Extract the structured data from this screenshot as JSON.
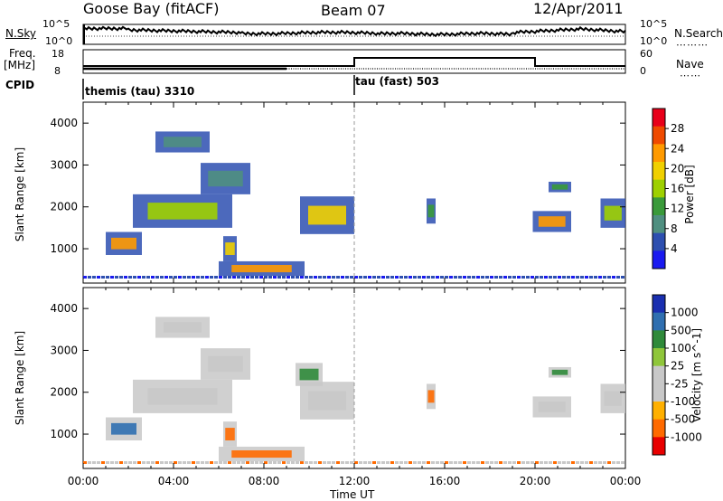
{
  "header": {
    "station": "Goose Bay (fitACF)",
    "beam": "Beam 07",
    "date": "12/Apr/2011"
  },
  "noise_panel": {
    "left_label": "N.Sky",
    "right_label": "N.Search",
    "left_ticks": [
      "10^5",
      "10^0"
    ],
    "right_ticks": [
      "10^5",
      "10^0"
    ]
  },
  "freq_panel": {
    "left_label": "Freq.",
    "left_unit": "[MHz]",
    "right_label": "Nave",
    "left_ticks": [
      "18",
      "8"
    ],
    "right_ticks": [
      "60",
      "0"
    ]
  },
  "cpid_panel": {
    "label": "CPID",
    "programs": [
      {
        "name": "themis (tau) 3310",
        "start_hour": 0
      },
      {
        "name": "tau (fast) 503",
        "start_hour": 12
      }
    ]
  },
  "time_axis": {
    "label": "Time UT",
    "ticks": [
      "00:00",
      "04:00",
      "08:00",
      "12:00",
      "16:00",
      "20:00",
      "00:00"
    ]
  },
  "chart_data": [
    {
      "type": "heatmap",
      "title": "Power",
      "ylabel": "Slant Range [km]",
      "xlabel": "",
      "xlim": [
        0,
        24
      ],
      "ylim": [
        180,
        4500
      ],
      "yticks": [
        1000,
        2000,
        3000,
        4000
      ],
      "colorbar": {
        "label": "Power [dB]",
        "ticks": [
          "28",
          "24",
          "20",
          "16",
          "12",
          "8",
          "4"
        ],
        "colors": [
          "#e8001a",
          "#ef4a00",
          "#ff9a00",
          "#f0d000",
          "#9ed000",
          "#3a9a3a",
          "#4f8f80",
          "#2d4fb0",
          "#1a1af0"
        ]
      },
      "regions": [
        {
          "t0": 1.0,
          "t1": 2.6,
          "r0": 850,
          "r1": 1400,
          "level": 22
        },
        {
          "t0": 2.2,
          "t1": 6.6,
          "r0": 1500,
          "r1": 2300,
          "level": 14
        },
        {
          "t0": 3.2,
          "t1": 5.6,
          "r0": 3300,
          "r1": 3800,
          "level": 8
        },
        {
          "t0": 5.2,
          "t1": 7.4,
          "r0": 2300,
          "r1": 3050,
          "level": 9
        },
        {
          "t0": 6.0,
          "t1": 9.8,
          "r0": 350,
          "r1": 700,
          "level": 22
        },
        {
          "t0": 6.2,
          "t1": 6.8,
          "r0": 700,
          "r1": 1300,
          "level": 18
        },
        {
          "t0": 9.6,
          "t1": 12.0,
          "r0": 1350,
          "r1": 2250,
          "level": 20
        },
        {
          "t0": 15.2,
          "t1": 15.6,
          "r0": 1600,
          "r1": 2200,
          "level": 12
        },
        {
          "t0": 19.9,
          "t1": 21.6,
          "r0": 1400,
          "r1": 1900,
          "level": 22
        },
        {
          "t0": 22.9,
          "t1": 24.0,
          "r0": 1500,
          "r1": 2200,
          "level": 14
        },
        {
          "t0": 20.6,
          "t1": 21.6,
          "r0": 2350,
          "r1": 2600,
          "level": 10
        }
      ]
    },
    {
      "type": "heatmap",
      "title": "Velocity",
      "ylabel": "Slant Range [km]",
      "xlabel": "Time UT",
      "xlim": [
        0,
        24
      ],
      "ylim": [
        180,
        4500
      ],
      "yticks": [
        1000,
        2000,
        3000,
        4000
      ],
      "colorbar": {
        "label": "Velocity [m s^-1]",
        "ticks": [
          "1000",
          "500",
          "100",
          "25",
          "-25",
          "-100",
          "-500",
          "-1000"
        ],
        "colors": [
          "#1a2fb0",
          "#2f6fb0",
          "#2f8a3a",
          "#8fc63a",
          "#c8c8c8",
          "#c8c8c8",
          "#ffb000",
          "#ff6a00",
          "#e80000"
        ]
      },
      "regions": [
        {
          "t0": 1.0,
          "t1": 2.6,
          "r0": 850,
          "r1": 1400,
          "level": 300
        },
        {
          "t0": 2.2,
          "t1": 6.6,
          "r0": 1500,
          "r1": 2300,
          "level": 0
        },
        {
          "t0": 3.2,
          "t1": 5.6,
          "r0": 3300,
          "r1": 3800,
          "level": 0
        },
        {
          "t0": 5.2,
          "t1": 7.4,
          "r0": 2300,
          "r1": 3050,
          "level": 0
        },
        {
          "t0": 6.0,
          "t1": 9.8,
          "r0": 350,
          "r1": 700,
          "level": -300
        },
        {
          "t0": 6.2,
          "t1": 6.8,
          "r0": 700,
          "r1": 1300,
          "level": -300
        },
        {
          "t0": 9.6,
          "t1": 12.0,
          "r0": 1350,
          "r1": 2250,
          "level": 0
        },
        {
          "t0": 9.4,
          "t1": 10.6,
          "r0": 2150,
          "r1": 2700,
          "level": 80
        },
        {
          "t0": 15.2,
          "t1": 15.6,
          "r0": 1600,
          "r1": 2200,
          "level": -300
        },
        {
          "t0": 19.9,
          "t1": 21.6,
          "r0": 1400,
          "r1": 1900,
          "level": 0
        },
        {
          "t0": 22.9,
          "t1": 24.0,
          "r0": 1500,
          "r1": 2200,
          "level": 0
        },
        {
          "t0": 20.6,
          "t1": 21.6,
          "r0": 2350,
          "r1": 2600,
          "level": 80
        }
      ]
    }
  ]
}
